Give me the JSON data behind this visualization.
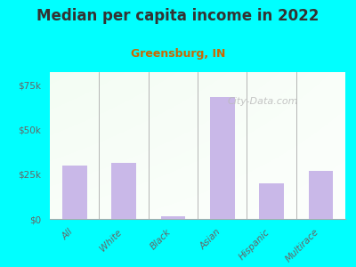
{
  "title": "Median per capita income in 2022",
  "subtitle": "Greensburg, IN",
  "categories": [
    "All",
    "White",
    "Black",
    "Asian",
    "Hispanic",
    "Multirace"
  ],
  "values": [
    30000,
    31500,
    1500,
    68000,
    20000,
    27000
  ],
  "bar_color": "#c9b8e8",
  "title_color": "#333333",
  "subtitle_color": "#cc6600",
  "background_color": "#00ffff",
  "yticks": [
    0,
    25000,
    50000,
    75000
  ],
  "ytick_labels": [
    "$0",
    "$25k",
    "$50k",
    "$75k"
  ],
  "tick_color": "#666666",
  "watermark": "City-Data.com",
  "ylim": [
    0,
    82000
  ]
}
